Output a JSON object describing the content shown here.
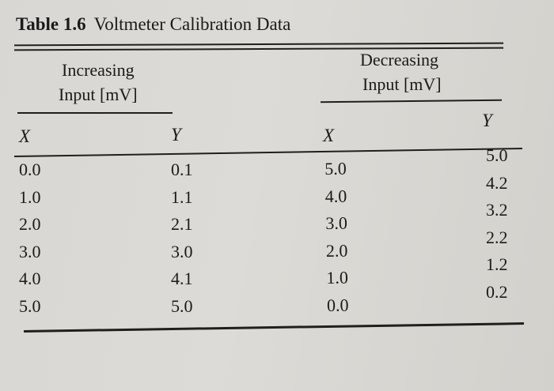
{
  "table": {
    "label": "Table 1.6",
    "title": "Voltmeter Calibration Data",
    "groups": {
      "increasing": {
        "line1": "Increasing",
        "line2": "Input [mV]"
      },
      "decreasing": {
        "line1": "Decreasing",
        "line2": "Input [mV]"
      }
    },
    "columns": {
      "inc_x": "X",
      "inc_y": "Y",
      "dec_x": "X",
      "dec_y": "Y"
    },
    "rows": {
      "inc_x": [
        "0.0",
        "1.0",
        "2.0",
        "3.0",
        "4.0",
        "5.0"
      ],
      "inc_y": [
        "0.1",
        "1.1",
        "2.1",
        "3.0",
        "4.1",
        "5.0"
      ],
      "dec_x": [
        "5.0",
        "4.0",
        "3.0",
        "2.0",
        "1.0",
        "0.0"
      ],
      "dec_y": [
        "5.0",
        "4.2",
        "3.2",
        "2.2",
        "1.2",
        "0.2"
      ]
    }
  }
}
